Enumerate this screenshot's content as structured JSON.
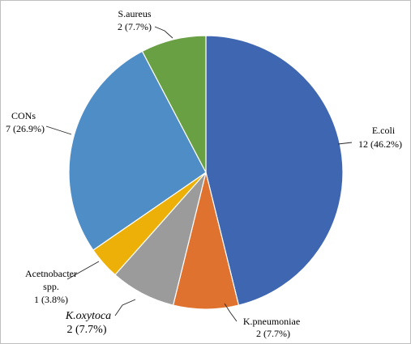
{
  "chart_data": {
    "type": "pie",
    "title": "",
    "slices": [
      {
        "name": "E.coli",
        "value": 12,
        "label": "12 (46.2%)",
        "color": "#3F67B1"
      },
      {
        "name": "K.pneumoniae",
        "value": 2,
        "label": "2 (7.7%)",
        "color": "#E0722F"
      },
      {
        "name": "K.oxytoca",
        "value": 2,
        "label": "2 (7.7%)",
        "color": "#9B9B9B"
      },
      {
        "name": "Acetnobacter spp.",
        "value": 1,
        "label": "1 (3.8%)",
        "color": "#EDB008"
      },
      {
        "name": "CONs",
        "value": 7,
        "label": "7 (26.9%)",
        "color": "#4F8DC6"
      },
      {
        "name": "S.aureus",
        "value": 2,
        "label": "2 (7.7%)",
        "color": "#69A043"
      }
    ],
    "start_angle": "12 o'clock",
    "direction": "clockwise",
    "legend": "none"
  }
}
